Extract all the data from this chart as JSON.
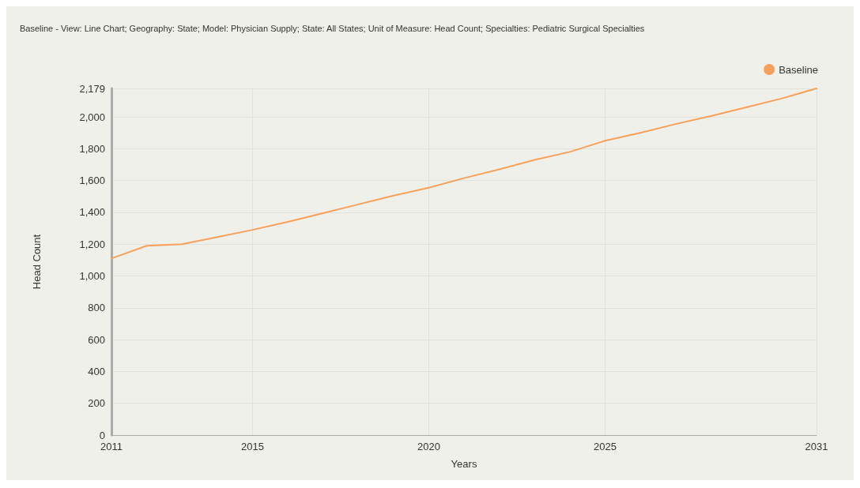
{
  "chart_data": {
    "type": "line",
    "title": "Baseline - View: Line Chart; Geography: State; Model: Physician Supply; State: All States; Unit of Measure: Head Count; Specialties: Pediatric Surgical Specialties",
    "xlabel": "Years",
    "ylabel": "Head Count",
    "x": [
      2011,
      2012,
      2013,
      2014,
      2015,
      2016,
      2017,
      2018,
      2019,
      2020,
      2021,
      2022,
      2023,
      2024,
      2025,
      2026,
      2027,
      2028,
      2029,
      2030,
      2031
    ],
    "series": [
      {
        "name": "Baseline",
        "color": "#f7a05a",
        "values": [
          1110,
          1190,
          1200,
          1245,
          1290,
          1340,
          1395,
          1450,
          1505,
          1555,
          1615,
          1670,
          1730,
          1780,
          1850,
          1900,
          1955,
          2005,
          2060,
          2115,
          2179
        ]
      }
    ],
    "xlim": [
      2011,
      2031
    ],
    "xticks": [
      2011,
      2015,
      2020,
      2025,
      2031
    ],
    "ylim": [
      0,
      2179
    ],
    "yticks": [
      0,
      200,
      400,
      600,
      800,
      {
        "value": 1000,
        "label": "1,000"
      },
      {
        "value": 1200,
        "label": "1,200"
      },
      {
        "value": 1400,
        "label": "1,400"
      },
      {
        "value": 1600,
        "label": "1,600"
      },
      {
        "value": 1800,
        "label": "1,800"
      },
      {
        "value": 2000,
        "label": "2,000"
      },
      {
        "value": 2179,
        "label": "2,179"
      }
    ],
    "grid": true,
    "legend": "top right",
    "marker": "none",
    "line_style": "solid"
  }
}
